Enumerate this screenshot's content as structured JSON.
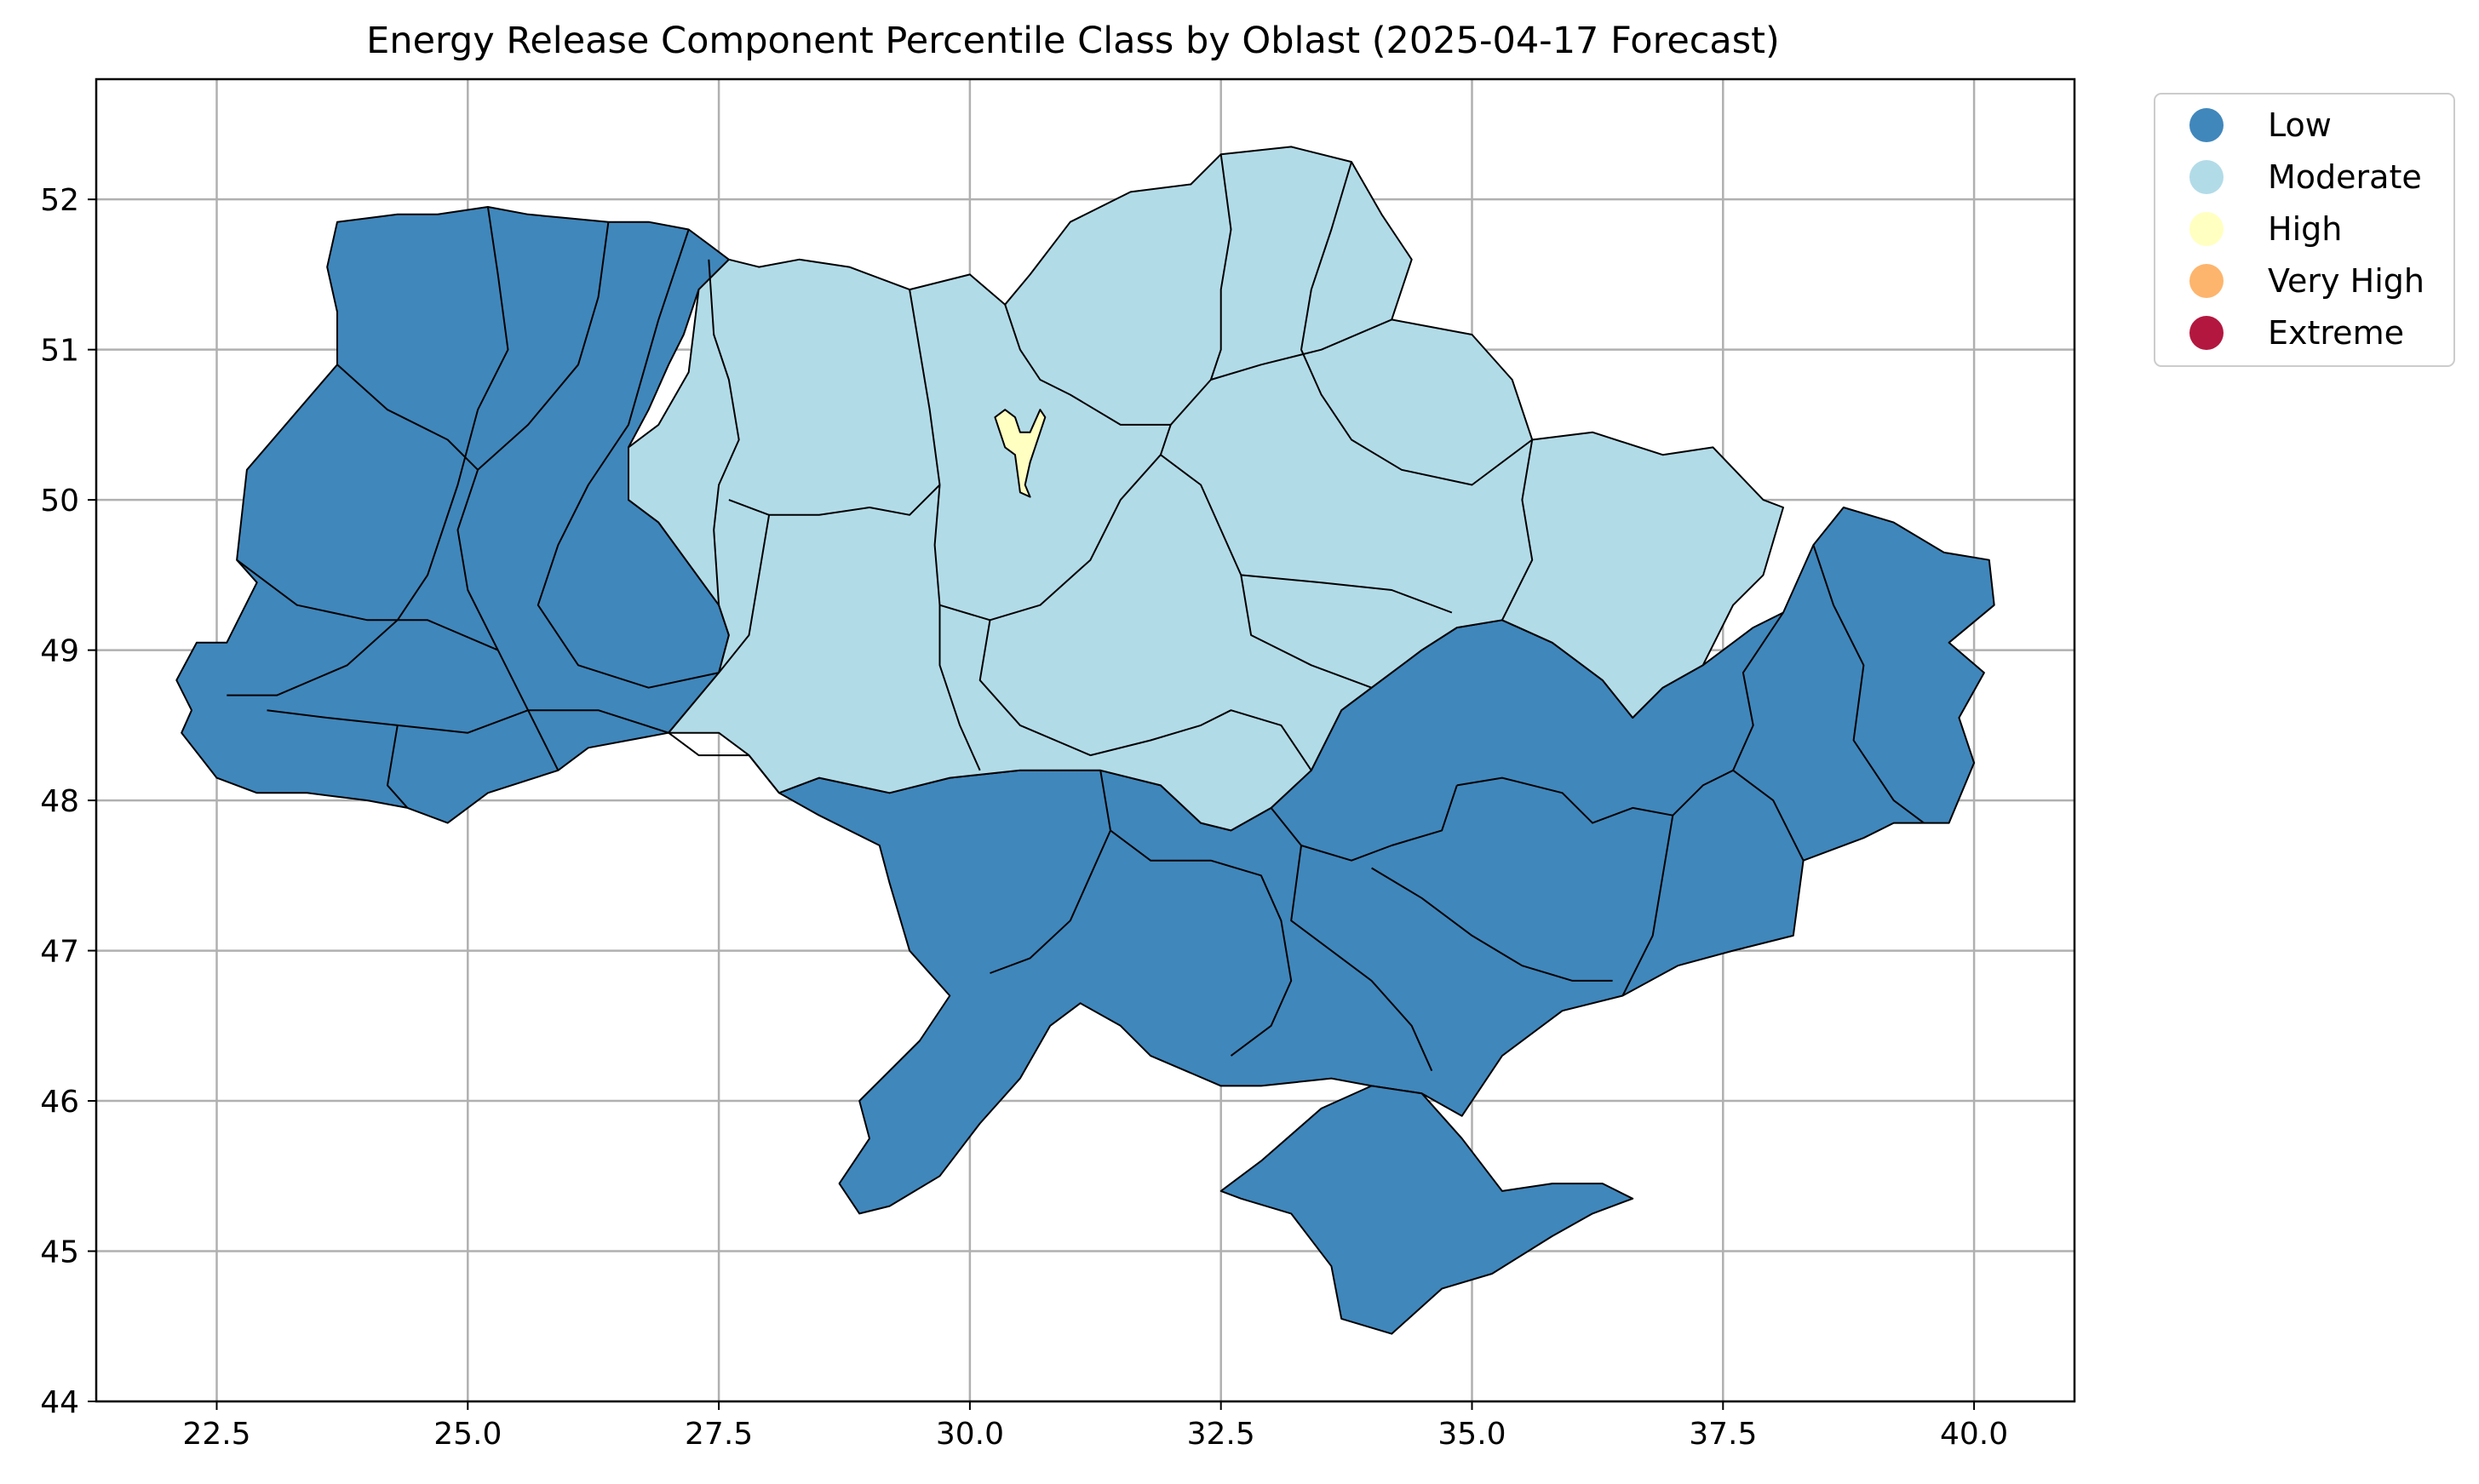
{
  "title": "Energy Release Component Percentile Class by Oblast (2025-04-17 Forecast)",
  "x_ticks": [
    "22.5",
    "25.0",
    "27.5",
    "30.0",
    "32.5",
    "35.0",
    "37.5",
    "40.0"
  ],
  "y_ticks": [
    "44",
    "45",
    "46",
    "47",
    "48",
    "49",
    "50",
    "51",
    "52"
  ],
  "legend": [
    {
      "label": "Low",
      "color": "#4087bc"
    },
    {
      "label": "Moderate",
      "color": "#b2dbe8"
    },
    {
      "label": "High",
      "color": "#ffffc1"
    },
    {
      "label": "Very High",
      "color": "#fdb56d"
    },
    {
      "label": "Extreme",
      "color": "#b3173f"
    }
  ],
  "chart_data": {
    "type": "choropleth",
    "title": "Energy Release Component Percentile Class by Oblast (2025-04-17 Forecast)",
    "xlim": [
      21.3,
      41.0
    ],
    "ylim": [
      44.0,
      52.8
    ],
    "grid": true,
    "legend_position": "outside-top-right",
    "classes": [
      "Low",
      "Moderate",
      "High",
      "Very High",
      "Extreme"
    ],
    "colors": {
      "Low": "#4087bc",
      "Moderate": "#b2dbe8",
      "High": "#ffffc1",
      "Very High": "#fdb56d",
      "Extreme": "#b3173f"
    },
    "region_classes": {
      "west": "Low",
      "south": "Low",
      "east": "Low",
      "crimea": "Low",
      "central": "Moderate",
      "north": "Moderate",
      "kyiv-city": "High"
    },
    "regions": [
      {
        "id": "west",
        "class": "Low",
        "points": [
          [
            22.15,
            48.45
          ],
          [
            22.25,
            48.6
          ],
          [
            22.1,
            48.8
          ],
          [
            22.3,
            49.05
          ],
          [
            22.6,
            49.05
          ],
          [
            22.9,
            49.45
          ],
          [
            22.7,
            49.6
          ],
          [
            22.8,
            50.2
          ],
          [
            23.7,
            50.9
          ],
          [
            23.7,
            51.25
          ],
          [
            23.6,
            51.55
          ],
          [
            23.7,
            51.85
          ],
          [
            24.3,
            51.9
          ],
          [
            24.7,
            51.9
          ],
          [
            25.2,
            51.95
          ],
          [
            25.6,
            51.9
          ],
          [
            26.4,
            51.85
          ],
          [
            26.8,
            51.85
          ],
          [
            27.2,
            51.8
          ],
          [
            27.4,
            51.7
          ],
          [
            27.6,
            51.6
          ],
          [
            27.3,
            51.4
          ],
          [
            27.15,
            51.1
          ],
          [
            27.0,
            50.9
          ],
          [
            26.8,
            50.6
          ],
          [
            26.6,
            50.35
          ],
          [
            26.6,
            50.0
          ],
          [
            26.9,
            49.85
          ],
          [
            27.5,
            49.3
          ],
          [
            27.6,
            49.1
          ],
          [
            27.5,
            48.85
          ],
          [
            27.0,
            48.45
          ],
          [
            26.2,
            48.35
          ],
          [
            25.9,
            48.2
          ],
          [
            25.2,
            48.05
          ],
          [
            24.8,
            47.85
          ],
          [
            24.4,
            47.95
          ],
          [
            24.0,
            48.0
          ],
          [
            23.4,
            48.05
          ],
          [
            22.9,
            48.05
          ],
          [
            22.5,
            48.15
          ]
        ]
      },
      {
        "id": "south",
        "class": "Low",
        "points": [
          [
            28.1,
            48.05
          ],
          [
            28.5,
            48.15
          ],
          [
            29.2,
            48.05
          ],
          [
            29.8,
            48.15
          ],
          [
            30.5,
            48.2
          ],
          [
            31.3,
            48.2
          ],
          [
            31.9,
            48.1
          ],
          [
            32.3,
            47.85
          ],
          [
            32.6,
            47.8
          ],
          [
            33.0,
            47.95
          ],
          [
            33.4,
            48.2
          ],
          [
            33.7,
            48.6
          ],
          [
            34.0,
            48.75
          ],
          [
            34.5,
            49.0
          ],
          [
            34.85,
            49.15
          ],
          [
            35.3,
            49.2
          ],
          [
            35.8,
            49.05
          ],
          [
            36.3,
            48.8
          ],
          [
            36.6,
            48.55
          ],
          [
            36.9,
            48.75
          ],
          [
            37.3,
            48.9
          ],
          [
            37.8,
            49.15
          ],
          [
            38.1,
            49.25
          ],
          [
            38.4,
            49.7
          ],
          [
            38.7,
            49.95
          ],
          [
            39.2,
            49.85
          ],
          [
            39.7,
            49.65
          ],
          [
            40.15,
            49.6
          ],
          [
            40.2,
            49.3
          ],
          [
            39.75,
            49.05
          ],
          [
            40.1,
            48.85
          ],
          [
            39.85,
            48.55
          ],
          [
            40.0,
            48.25
          ],
          [
            39.75,
            47.85
          ],
          [
            39.2,
            47.85
          ],
          [
            38.9,
            47.75
          ],
          [
            38.3,
            47.6
          ],
          [
            38.2,
            47.1
          ],
          [
            37.6,
            47.0
          ],
          [
            37.05,
            46.9
          ],
          [
            36.5,
            46.7
          ],
          [
            35.9,
            46.6
          ],
          [
            35.3,
            46.3
          ],
          [
            34.9,
            45.9
          ],
          [
            34.5,
            46.05
          ],
          [
            34.0,
            46.1
          ],
          [
            33.6,
            46.15
          ],
          [
            32.9,
            46.1
          ],
          [
            32.5,
            46.1
          ],
          [
            31.8,
            46.3
          ],
          [
            31.5,
            46.5
          ],
          [
            31.1,
            46.65
          ],
          [
            30.8,
            46.5
          ],
          [
            30.5,
            46.15
          ],
          [
            30.1,
            45.85
          ],
          [
            29.7,
            45.5
          ],
          [
            29.2,
            45.3
          ],
          [
            28.9,
            45.25
          ],
          [
            28.7,
            45.45
          ],
          [
            29.0,
            45.75
          ],
          [
            28.9,
            46.0
          ],
          [
            29.5,
            46.4
          ],
          [
            29.8,
            46.7
          ],
          [
            29.4,
            47.0
          ],
          [
            29.2,
            47.45
          ],
          [
            29.1,
            47.7
          ],
          [
            28.5,
            47.9
          ]
        ]
      },
      {
        "id": "crimea",
        "class": "Low",
        "points": [
          [
            32.5,
            45.4
          ],
          [
            32.9,
            45.6
          ],
          [
            33.5,
            45.95
          ],
          [
            34.0,
            46.1
          ],
          [
            34.5,
            46.05
          ],
          [
            34.9,
            45.75
          ],
          [
            35.3,
            45.4
          ],
          [
            35.8,
            45.45
          ],
          [
            36.3,
            45.45
          ],
          [
            36.6,
            45.35
          ],
          [
            36.2,
            45.25
          ],
          [
            35.8,
            45.1
          ],
          [
            35.2,
            44.85
          ],
          [
            34.7,
            44.75
          ],
          [
            34.2,
            44.45
          ],
          [
            33.7,
            44.55
          ],
          [
            33.6,
            44.9
          ],
          [
            33.2,
            45.25
          ],
          [
            32.7,
            45.35
          ]
        ]
      },
      {
        "id": "central",
        "class": "Moderate",
        "points": [
          [
            26.6,
            50.35
          ],
          [
            26.9,
            50.5
          ],
          [
            27.2,
            50.85
          ],
          [
            27.3,
            51.4
          ],
          [
            27.6,
            51.6
          ],
          [
            27.9,
            51.55
          ],
          [
            28.3,
            51.6
          ],
          [
            28.8,
            51.55
          ],
          [
            29.4,
            51.4
          ],
          [
            30.0,
            51.5
          ],
          [
            30.35,
            51.3
          ],
          [
            30.6,
            51.5
          ],
          [
            31.0,
            51.85
          ],
          [
            31.6,
            52.05
          ],
          [
            32.2,
            52.1
          ],
          [
            32.5,
            52.3
          ],
          [
            33.2,
            52.35
          ],
          [
            33.8,
            52.25
          ],
          [
            34.1,
            51.9
          ],
          [
            34.4,
            51.6
          ],
          [
            34.2,
            51.2
          ],
          [
            35.0,
            51.1
          ],
          [
            35.4,
            50.8
          ],
          [
            35.6,
            50.4
          ],
          [
            36.2,
            50.45
          ],
          [
            36.9,
            50.3
          ],
          [
            37.4,
            50.35
          ],
          [
            37.9,
            50.0
          ],
          [
            38.1,
            49.95
          ],
          [
            37.9,
            49.5
          ],
          [
            37.6,
            49.3
          ],
          [
            37.3,
            48.9
          ],
          [
            36.9,
            48.75
          ],
          [
            36.6,
            48.55
          ],
          [
            36.3,
            48.8
          ],
          [
            35.8,
            49.05
          ],
          [
            35.3,
            49.2
          ],
          [
            34.85,
            49.15
          ],
          [
            34.5,
            49.0
          ],
          [
            34.0,
            48.75
          ],
          [
            33.7,
            48.6
          ],
          [
            33.4,
            48.2
          ],
          [
            33.0,
            47.95
          ],
          [
            32.6,
            47.8
          ],
          [
            32.3,
            47.85
          ],
          [
            31.9,
            48.1
          ],
          [
            31.3,
            48.2
          ],
          [
            30.5,
            48.2
          ],
          [
            29.8,
            48.15
          ],
          [
            29.2,
            48.05
          ],
          [
            28.5,
            48.15
          ],
          [
            28.1,
            48.05
          ],
          [
            27.8,
            48.3
          ],
          [
            27.5,
            48.45
          ],
          [
            27.0,
            48.45
          ],
          [
            27.5,
            48.85
          ],
          [
            27.6,
            49.1
          ],
          [
            27.5,
            49.3
          ],
          [
            26.9,
            49.85
          ],
          [
            26.6,
            50.0
          ]
        ]
      },
      {
        "id": "kyiv-city",
        "class": "High",
        "points": [
          [
            30.25,
            50.55
          ],
          [
            30.35,
            50.6
          ],
          [
            30.45,
            50.55
          ],
          [
            30.5,
            50.45
          ],
          [
            30.6,
            50.45
          ],
          [
            30.7,
            50.6
          ],
          [
            30.75,
            50.55
          ],
          [
            30.65,
            50.35
          ],
          [
            30.6,
            50.25
          ],
          [
            30.55,
            50.1
          ],
          [
            30.6,
            50.02
          ],
          [
            30.5,
            50.05
          ],
          [
            30.45,
            50.3
          ],
          [
            30.35,
            50.35
          ]
        ]
      }
    ]
  }
}
